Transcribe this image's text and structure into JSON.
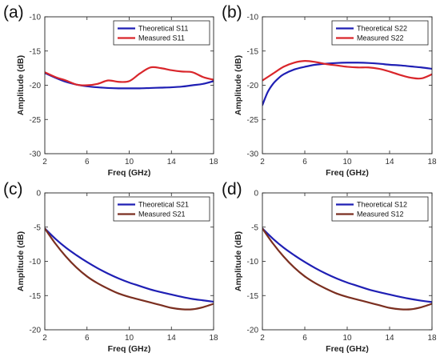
{
  "chart_data": [
    {
      "type": "line",
      "panel_label": "(a)",
      "xlabel": "Freq (GHz)",
      "ylabel": "Amplitude (dB)",
      "xlim": [
        2,
        18
      ],
      "ylim": [
        -30,
        -10
      ],
      "xticks": [
        2,
        6,
        10,
        14,
        18
      ],
      "yticks": [
        -10,
        -15,
        -20,
        -25,
        -30
      ],
      "legend_position": "top-right",
      "series": [
        {
          "name": "Theoretical S11",
          "color": "#1f1fb4",
          "x": [
            2,
            3,
            4,
            5,
            6,
            7,
            8,
            9,
            10,
            11,
            12,
            13,
            14,
            15,
            16,
            17,
            18
          ],
          "y": [
            -18.2,
            -18.9,
            -19.5,
            -19.9,
            -20.15,
            -20.3,
            -20.4,
            -20.45,
            -20.45,
            -20.45,
            -20.4,
            -20.35,
            -20.3,
            -20.2,
            -20.0,
            -19.8,
            -19.4
          ]
        },
        {
          "name": "Measured S11",
          "color": "#d9262b",
          "x": [
            2,
            3,
            4,
            5,
            6,
            7,
            8,
            9,
            10,
            11,
            12,
            13,
            14,
            15,
            16,
            17,
            18
          ],
          "y": [
            -18.1,
            -18.8,
            -19.3,
            -19.9,
            -20.0,
            -19.8,
            -19.3,
            -19.5,
            -19.4,
            -18.3,
            -17.4,
            -17.5,
            -17.8,
            -18.0,
            -18.1,
            -18.8,
            -19.2
          ]
        }
      ]
    },
    {
      "type": "line",
      "panel_label": "(b)",
      "xlabel": "Freq (GHz)",
      "ylabel": "Amplitude (dB)",
      "xlim": [
        2,
        18
      ],
      "ylim": [
        -30,
        -10
      ],
      "xticks": [
        2,
        6,
        10,
        14,
        18
      ],
      "yticks": [
        -10,
        -15,
        -20,
        -25,
        -30
      ],
      "legend_position": "top-right",
      "series": [
        {
          "name": "Theoretical S22",
          "color": "#1f1fb4",
          "x": [
            2,
            2.5,
            3,
            3.5,
            4,
            5,
            6,
            7,
            8,
            9,
            10,
            11,
            12,
            13,
            14,
            15,
            16,
            17,
            18
          ],
          "y": [
            -22.9,
            -21.0,
            -19.8,
            -19.0,
            -18.4,
            -17.7,
            -17.3,
            -17.0,
            -16.85,
            -16.75,
            -16.7,
            -16.7,
            -16.75,
            -16.85,
            -17.0,
            -17.1,
            -17.25,
            -17.4,
            -17.6
          ]
        },
        {
          "name": "Measured S22",
          "color": "#d9262b",
          "x": [
            2,
            3,
            4,
            5,
            6,
            7,
            8,
            9,
            10,
            11,
            12,
            13,
            14,
            15,
            16,
            17,
            18
          ],
          "y": [
            -19.3,
            -18.3,
            -17.3,
            -16.7,
            -16.45,
            -16.6,
            -16.9,
            -17.1,
            -17.3,
            -17.4,
            -17.4,
            -17.6,
            -18.0,
            -18.5,
            -18.9,
            -19.0,
            -18.4
          ]
        }
      ]
    },
    {
      "type": "line",
      "panel_label": "(c)",
      "xlabel": "Freq (GHz)",
      "ylabel": "Amplitude (dB)",
      "xlim": [
        2,
        18
      ],
      "ylim": [
        -20,
        0
      ],
      "xticks": [
        2,
        6,
        10,
        14,
        18
      ],
      "yticks": [
        0,
        -5,
        -10,
        -15,
        -20
      ],
      "legend_position": "top-right",
      "series": [
        {
          "name": "Theoretical S21",
          "color": "#1f1fb4",
          "x": [
            2,
            3,
            4,
            5,
            6,
            7,
            8,
            9,
            10,
            11,
            12,
            13,
            14,
            15,
            16,
            17,
            18
          ],
          "y": [
            -5.2,
            -6.7,
            -8.0,
            -9.1,
            -10.1,
            -11.0,
            -11.8,
            -12.5,
            -13.1,
            -13.6,
            -14.1,
            -14.5,
            -14.85,
            -15.2,
            -15.5,
            -15.7,
            -15.9
          ]
        },
        {
          "name": "Measured S21",
          "color": "#7b2f20",
          "x": [
            2,
            3,
            4,
            5,
            6,
            7,
            8,
            9,
            10,
            11,
            12,
            13,
            14,
            15,
            16,
            17,
            18
          ],
          "y": [
            -5.2,
            -7.4,
            -9.3,
            -10.9,
            -12.2,
            -13.2,
            -14.0,
            -14.7,
            -15.2,
            -15.6,
            -16.0,
            -16.4,
            -16.8,
            -17.0,
            -17.0,
            -16.7,
            -16.2
          ]
        }
      ]
    },
    {
      "type": "line",
      "panel_label": "(d)",
      "xlabel": "Freq (GHz)",
      "ylabel": "Amplitude (dB)",
      "xlim": [
        2,
        18
      ],
      "ylim": [
        -20,
        0
      ],
      "xticks": [
        2,
        6,
        10,
        14,
        18
      ],
      "yticks": [
        0,
        -5,
        -10,
        -15,
        -20
      ],
      "legend_position": "top-right",
      "series": [
        {
          "name": "Theoretical S12",
          "color": "#1f1fb4",
          "x": [
            2,
            3,
            4,
            5,
            6,
            7,
            8,
            9,
            10,
            11,
            12,
            13,
            14,
            15,
            16,
            17,
            18
          ],
          "y": [
            -5.2,
            -6.7,
            -8.0,
            -9.1,
            -10.1,
            -11.0,
            -11.8,
            -12.5,
            -13.1,
            -13.6,
            -14.1,
            -14.5,
            -14.85,
            -15.2,
            -15.5,
            -15.75,
            -15.95
          ]
        },
        {
          "name": "Measured S12",
          "color": "#7b2f20",
          "x": [
            2,
            3,
            4,
            5,
            6,
            7,
            8,
            9,
            10,
            11,
            12,
            13,
            14,
            15,
            16,
            17,
            18
          ],
          "y": [
            -5.2,
            -7.4,
            -9.3,
            -10.9,
            -12.2,
            -13.2,
            -14.0,
            -14.7,
            -15.2,
            -15.6,
            -16.0,
            -16.4,
            -16.8,
            -17.0,
            -17.0,
            -16.7,
            -16.2
          ]
        }
      ]
    }
  ]
}
